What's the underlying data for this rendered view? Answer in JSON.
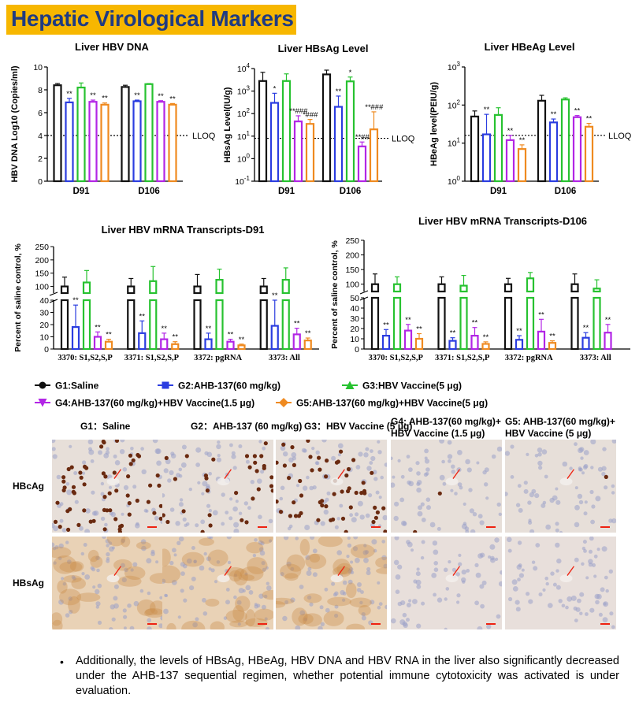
{
  "banner": {
    "title": "Hepatic Virological Markers"
  },
  "colors": {
    "G1": "#111111",
    "G2": "#2b3de0",
    "G3": "#27c230",
    "G4": "#b225e6",
    "G5": "#ef8a20",
    "banner_bg": "#f7b700",
    "banner_text": "#1f3b82"
  },
  "chart_data": [
    {
      "type": "bar",
      "title": "Liver HBV DNA",
      "ylabel": "HBV DNA Log10 (Copies/ml)",
      "categories": [
        "D91",
        "D106"
      ],
      "ylim": [
        0,
        10
      ],
      "yticks": [
        "0",
        "2",
        "4",
        "6",
        "8",
        "10"
      ],
      "lloq": {
        "label": "LLOQ",
        "value": 4
      },
      "series": [
        {
          "name": "G1",
          "values": [
            8.4,
            8.25
          ],
          "err": [
            0.15,
            0.15
          ],
          "marks": [
            "",
            ""
          ]
        },
        {
          "name": "G2",
          "values": [
            6.9,
            7.0
          ],
          "err": [
            0.35,
            0.1
          ],
          "marks": [
            "**",
            "**"
          ]
        },
        {
          "name": "G3",
          "values": [
            8.2,
            8.5
          ],
          "err": [
            0.4,
            0.05
          ],
          "marks": [
            "",
            ""
          ]
        },
        {
          "name": "G4",
          "values": [
            6.95,
            6.95
          ],
          "err": [
            0.15,
            0.1
          ],
          "marks": [
            "**",
            "**"
          ]
        },
        {
          "name": "G5",
          "values": [
            6.7,
            6.7
          ],
          "err": [
            0.15,
            0.1
          ],
          "marks": [
            "**",
            "**"
          ]
        }
      ]
    },
    {
      "type": "bar",
      "title": "Liver HBsAg Level",
      "ylabel": "HBsAg Level(IU/g)",
      "scale": "log",
      "categories": [
        "D91",
        "D106"
      ],
      "ylim": [
        0.1,
        10000
      ],
      "yticks": [
        "10-1",
        "100",
        "101",
        "102",
        "103",
        "104"
      ],
      "lloq": {
        "label": "LLOQ",
        "value": 8
      },
      "series": [
        {
          "name": "G1",
          "values": [
            2800,
            5500
          ],
          "err": [
            4000,
            3000
          ],
          "marks": [
            "",
            ""
          ]
        },
        {
          "name": "G2",
          "values": [
            300,
            200
          ],
          "err": [
            500,
            400
          ],
          "marks": [
            "*",
            "**"
          ]
        },
        {
          "name": "G3",
          "values": [
            2800,
            2700
          ],
          "err": [
            3000,
            1500
          ],
          "marks": [
            "",
            "*"
          ]
        },
        {
          "name": "G4",
          "values": [
            45,
            3.5
          ],
          "err": [
            35,
            2
          ],
          "marks": [
            "**###",
            "**##"
          ]
        },
        {
          "name": "G5",
          "values": [
            35,
            20
          ],
          "err": [
            20,
            100
          ],
          "marks": [
            "*###",
            "**###"
          ]
        }
      ]
    },
    {
      "type": "bar",
      "title": "Liver HBeAg Level",
      "ylabel": "HBeAg level(PEIU/g)",
      "scale": "log",
      "categories": [
        "D91",
        "D106"
      ],
      "ylim": [
        1,
        1000
      ],
      "yticks": [
        "100",
        "101",
        "102",
        "103"
      ],
      "lloq": {
        "label": "LLOQ",
        "value": 16
      },
      "series": [
        {
          "name": "G1",
          "values": [
            50,
            130
          ],
          "err": [
            20,
            50
          ],
          "marks": [
            "",
            ""
          ]
        },
        {
          "name": "G2",
          "values": [
            17,
            35
          ],
          "err": [
            40,
            8
          ],
          "marks": [
            "**",
            "**"
          ]
        },
        {
          "name": "G3",
          "values": [
            55,
            140
          ],
          "err": [
            30,
            15
          ],
          "marks": [
            "",
            ""
          ]
        },
        {
          "name": "G4",
          "values": [
            12,
            48
          ],
          "err": [
            4,
            5
          ],
          "marks": [
            "**",
            "**"
          ]
        },
        {
          "name": "G5",
          "values": [
            7,
            27
          ],
          "err": [
            2,
            6
          ],
          "marks": [
            "**",
            "**"
          ]
        }
      ]
    },
    {
      "type": "bar",
      "title": "Liver HBV mRNA Transcripts-D91",
      "ylabel": "Percent of saline control, %",
      "broken_axis": true,
      "categories": [
        "3370: S1,S2,S,P",
        "3371: S1,S2,S,P",
        "3372: pgRNA",
        "3373: All"
      ],
      "yticks_upper": [
        "100",
        "150",
        "200",
        "250"
      ],
      "yticks_lower": [
        "0",
        "10",
        "20",
        "30",
        "40"
      ],
      "series": [
        {
          "name": "G1",
          "values": [
            100,
            100,
            100,
            100
          ],
          "err": [
            35,
            30,
            45,
            30
          ],
          "marks": [
            "",
            "",
            "",
            ""
          ]
        },
        {
          "name": "G2",
          "values": [
            18,
            13,
            8,
            19
          ],
          "err": [
            18,
            10,
            5,
            24
          ],
          "marks": [
            "**",
            "**",
            "**",
            "**"
          ]
        },
        {
          "name": "G3",
          "values": [
            115,
            120,
            125,
            125
          ],
          "err": [
            45,
            55,
            40,
            45
          ],
          "marks": [
            "",
            "",
            "",
            ""
          ]
        },
        {
          "name": "G4",
          "values": [
            10,
            8,
            6,
            12
          ],
          "err": [
            4,
            5,
            2,
            5
          ],
          "marks": [
            "**",
            "**",
            "**",
            "**"
          ]
        },
        {
          "name": "G5",
          "values": [
            6,
            4,
            3,
            7
          ],
          "err": [
            2,
            2,
            1,
            2
          ],
          "marks": [
            "**",
            "**",
            "**",
            "**"
          ]
        }
      ]
    },
    {
      "type": "bar",
      "title": "Liver HBV mRNA Transcripts-D106",
      "ylabel": "Percent of saline control, %",
      "broken_axis": true,
      "categories": [
        "3370: S1,S2,S,P",
        "3371: S1,S2,S,P",
        "3372: pgRNA",
        "3373: All"
      ],
      "yticks_upper": [
        "100",
        "150",
        "200",
        "250"
      ],
      "yticks_lower": [
        "0",
        "10",
        "20",
        "30",
        "40",
        "50"
      ],
      "series": [
        {
          "name": "G1",
          "values": [
            100,
            100,
            100,
            100
          ],
          "err": [
            35,
            25,
            20,
            35
          ],
          "marks": [
            "",
            "",
            "",
            ""
          ]
        },
        {
          "name": "G2",
          "values": [
            13,
            8,
            9,
            11
          ],
          "err": [
            6,
            3,
            4,
            5
          ],
          "marks": [
            "**",
            "**",
            "**",
            "**"
          ]
        },
        {
          "name": "G3",
          "values": [
            100,
            95,
            120,
            85
          ],
          "err": [
            25,
            35,
            20,
            30
          ],
          "marks": [
            "",
            "",
            "",
            ""
          ]
        },
        {
          "name": "G4",
          "values": [
            18,
            13,
            17,
            16
          ],
          "err": [
            6,
            8,
            12,
            8
          ],
          "marks": [
            "**",
            "**",
            "**",
            "**"
          ]
        },
        {
          "name": "G5",
          "values": [
            10,
            5,
            6,
            0
          ],
          "err": [
            5,
            2,
            2,
            0
          ],
          "marks": [
            "**",
            "**",
            "**",
            ""
          ]
        }
      ]
    }
  ],
  "legend": [
    {
      "key": "G1",
      "label": "G1:Saline",
      "marker": "circle"
    },
    {
      "key": "G2",
      "label": "G2:AHB-137(60 mg/kg)",
      "marker": "square"
    },
    {
      "key": "G3",
      "label": "G3:HBV Vaccine(5 μg)",
      "marker": "triangle-up"
    },
    {
      "key": "G4",
      "label": "G4:AHB-137(60 mg/kg)+HBV Vaccine(1.5 μg)",
      "marker": "triangle-down"
    },
    {
      "key": "G5",
      "label": "G5:AHB-137(60 mg/kg)+HBV Vaccine(5 μg)",
      "marker": "diamond"
    }
  ],
  "histology": {
    "columns": [
      "G1：Saline",
      "G2：AHB-137 (60 mg/kg)",
      "G3：HBV Vaccine (5 μg)",
      "G4: AHB-137(60 mg/kg)+ HBV Vaccine (1.5 μg)",
      "G5: AHB-137(60 mg/kg)+ HBV Vaccine (5 μg)"
    ],
    "rows": [
      "HBcAg",
      "HBsAg"
    ]
  },
  "footer": {
    "bullet": "•",
    "text": "Additionally, the levels of HBsAg, HBeAg, HBV DNA and HBV RNA in the liver also significantly decreased under the AHB-137 sequential regimen, whether potential immune cytotoxicity was activated is under evaluation."
  }
}
